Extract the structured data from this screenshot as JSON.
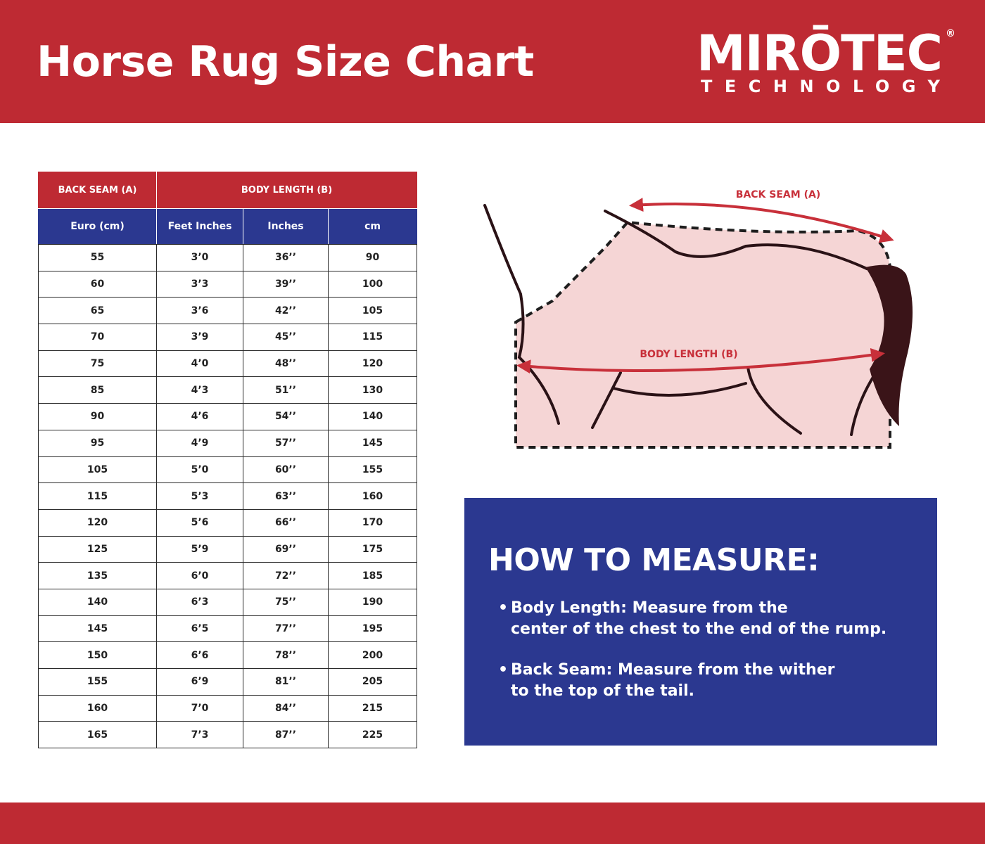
{
  "header": {
    "title": "Horse Rug Size Chart",
    "logo_main": "MIRŌTEC",
    "logo_reg": "®",
    "logo_sub": "TECHNOLOGY",
    "color": "#be2a33"
  },
  "table": {
    "group_headers": [
      "BACK SEAM (A)",
      "BODY LENGTH (B)"
    ],
    "columns": [
      "Euro (cm)",
      "Feet Inches",
      "Inches",
      "cm"
    ],
    "rows": [
      [
        "55",
        "3’0",
        "36’’",
        "90"
      ],
      [
        "60",
        "3’3",
        "39’’",
        "100"
      ],
      [
        "65",
        "3’6",
        "42’’",
        "105"
      ],
      [
        "70",
        "3’9",
        "45’’",
        "115"
      ],
      [
        "75",
        "4’0",
        "48’’",
        "120"
      ],
      [
        "85",
        "4’3",
        "51’’",
        "130"
      ],
      [
        "90",
        "4’6",
        "54’’",
        "140"
      ],
      [
        "95",
        "4’9",
        "57’’",
        "145"
      ],
      [
        "105",
        "5’0",
        "60’’",
        "155"
      ],
      [
        "115",
        "5’3",
        "63’’",
        "160"
      ],
      [
        "120",
        "5’6",
        "66’’",
        "170"
      ],
      [
        "125",
        "5’9",
        "69’’",
        "175"
      ],
      [
        "135",
        "6’0",
        "72’’",
        "185"
      ],
      [
        "140",
        "6’3",
        "75’’",
        "190"
      ],
      [
        "145",
        "6’5",
        "77’’",
        "195"
      ],
      [
        "150",
        "6’6",
        "78’’",
        "200"
      ],
      [
        "155",
        "6’9",
        "81’’",
        "205"
      ],
      [
        "160",
        "7’0",
        "84’’",
        "215"
      ],
      [
        "165",
        "7’3",
        "87’’",
        "225"
      ]
    ],
    "header_red": "#be2a33",
    "header_blue": "#2b3890"
  },
  "diagram": {
    "back_seam_label": "BACK SEAM (A)",
    "body_length_label": "BODY LENGTH (B)",
    "rug_fill": "#f5d5d5",
    "arrow_color": "#c8303a"
  },
  "measure": {
    "title": "HOW TO MEASURE:",
    "body_length": [
      "Body Length: Measure from the",
      "center of the chest to the end of the rump."
    ],
    "back_seam": [
      "Back Seam: Measure from the wither",
      "to the top of the tail."
    ],
    "bullet": "•"
  }
}
